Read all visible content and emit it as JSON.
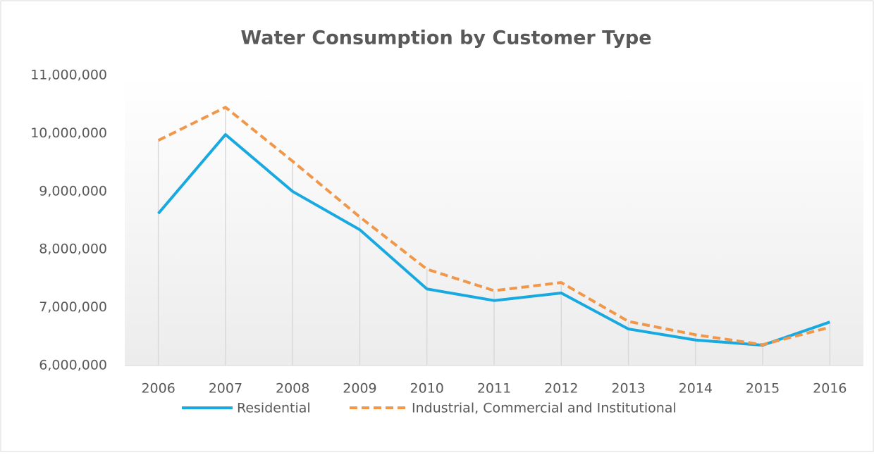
{
  "chart_data": {
    "type": "line",
    "title": "Water Consumption by Customer Type",
    "categories": [
      "2006",
      "2007",
      "2008",
      "2009",
      "2010",
      "2011",
      "2012",
      "2013",
      "2014",
      "2015",
      "2016"
    ],
    "series": [
      {
        "name": "Residential",
        "color": "#18a9e1",
        "dash": false,
        "values": [
          8620000,
          9980000,
          9000000,
          8340000,
          7320000,
          7120000,
          7250000,
          6630000,
          6440000,
          6350000,
          6750000
        ]
      },
      {
        "name": "Industrial, Commercial and Institutional",
        "color": "#f0974a",
        "dash": true,
        "values": [
          9880000,
          10450000,
          9520000,
          8560000,
          7660000,
          7290000,
          7430000,
          6760000,
          6530000,
          6360000,
          6660000
        ]
      }
    ],
    "ylim": [
      6000000,
      11000000
    ],
    "yticks": [
      {
        "value": 6000000,
        "label": "6,000,000"
      },
      {
        "value": 7000000,
        "label": "7,000,000"
      },
      {
        "value": 8000000,
        "label": "8,000,000"
      },
      {
        "value": 9000000,
        "label": "9,000,000"
      },
      {
        "value": 10000000,
        "label": "10,000,000"
      },
      {
        "value": 11000000,
        "label": "11,000,000"
      }
    ],
    "drop_lines": true,
    "legend": "bottom"
  }
}
